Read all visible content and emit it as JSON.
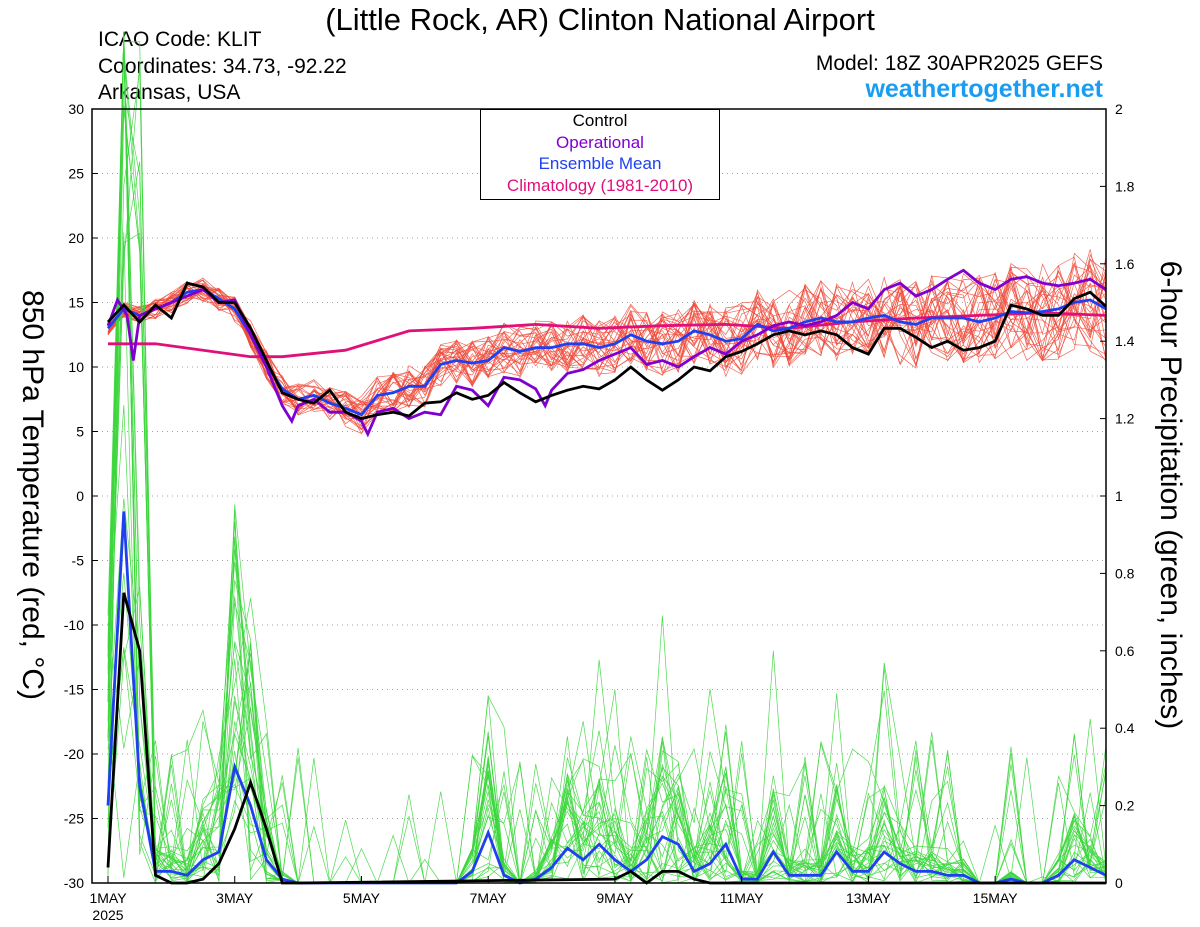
{
  "header": {
    "title": "(Little Rock, AR) Clinton National Airport",
    "icao": "ICAO Code: KLIT",
    "coords": "Coordinates: 34.73, -92.22",
    "region": "Arkansas, USA",
    "model": "Model: 18Z 30APR2025 GEFS",
    "brand": "weathertogether.net",
    "brand_color": "#1a9cf0"
  },
  "chart_data": {
    "type": "line",
    "ylabel_left": "850 hPa Temperature (red, °C)",
    "ylabel_right": "6-hour Precipitation (green, inches)",
    "ylim_left": [
      -30,
      30
    ],
    "ylim_right": [
      0,
      2
    ],
    "yticks_left": [
      "30",
      "25",
      "20",
      "15",
      "10",
      "5",
      "0",
      "-5",
      "-10",
      "-15",
      "-20",
      "-25",
      "-30"
    ],
    "yticks_right": [
      "2",
      "1.8",
      "1.6",
      "1.4",
      "1.2",
      "1",
      "0.8",
      "0.6",
      "0.4",
      "0.2",
      "0"
    ],
    "x_unit": "days since 1MAY 2025 00Z",
    "xlim": [
      0,
      15.75
    ],
    "xticks": [
      {
        "x": 0,
        "label": "1MAY"
      },
      {
        "x": 2,
        "label": "3MAY"
      },
      {
        "x": 4,
        "label": "5MAY"
      },
      {
        "x": 6,
        "label": "7MAY"
      },
      {
        "x": 8,
        "label": "9MAY"
      },
      {
        "x": 10,
        "label": "11MAY"
      },
      {
        "x": 12,
        "label": "13MAY"
      },
      {
        "x": 14,
        "label": "15MAY"
      }
    ],
    "x_year": "2025",
    "grid": "horizontal dotted",
    "legend_position": "top-center",
    "legend": [
      {
        "label": "Control",
        "color": "#000000"
      },
      {
        "label": "Operational",
        "color": "#8000d0"
      },
      {
        "label": "Ensemble Mean",
        "color": "#2040f0"
      },
      {
        "label": "Climatology (1981-2010)",
        "color": "#e0107a"
      }
    ],
    "colors": {
      "members_temp": "#f04a3a",
      "members_precip": "#3cd63c",
      "control": "#000000",
      "operational": "#8000d0",
      "mean": "#2040f0",
      "climatology": "#e0107a"
    },
    "temperature": {
      "control": [
        [
          0,
          13.5
        ],
        [
          0.25,
          14.8
        ],
        [
          0.5,
          13.5
        ],
        [
          0.75,
          14.8
        ],
        [
          1,
          13.8
        ],
        [
          1.25,
          16.5
        ],
        [
          1.5,
          16.2
        ],
        [
          1.75,
          15.0
        ],
        [
          2,
          15.0
        ],
        [
          2.25,
          13.0
        ],
        [
          2.5,
          10.5
        ],
        [
          2.75,
          8.0
        ],
        [
          3,
          7.5
        ],
        [
          3.25,
          7.2
        ],
        [
          3.5,
          8.2
        ],
        [
          3.75,
          6.5
        ],
        [
          4,
          6.0
        ],
        [
          4.25,
          6.3
        ],
        [
          4.5,
          6.5
        ],
        [
          4.75,
          6.2
        ],
        [
          5,
          7.2
        ],
        [
          5.25,
          7.3
        ],
        [
          5.5,
          8.0
        ],
        [
          5.75,
          7.5
        ],
        [
          6,
          7.8
        ],
        [
          6.25,
          8.8
        ],
        [
          6.5,
          8.0
        ],
        [
          6.75,
          7.3
        ],
        [
          7,
          7.8
        ],
        [
          7.25,
          8.2
        ],
        [
          7.5,
          8.5
        ],
        [
          7.75,
          8.3
        ],
        [
          8,
          9.0
        ],
        [
          8.25,
          10.0
        ],
        [
          8.5,
          9.0
        ],
        [
          8.75,
          8.2
        ],
        [
          9,
          9.0
        ],
        [
          9.25,
          10.0
        ],
        [
          9.5,
          9.7
        ],
        [
          9.75,
          10.8
        ],
        [
          10,
          11.2
        ],
        [
          10.25,
          11.8
        ],
        [
          10.5,
          12.5
        ],
        [
          10.75,
          12.8
        ],
        [
          11,
          12.5
        ],
        [
          11.25,
          12.8
        ],
        [
          11.5,
          12.5
        ],
        [
          11.75,
          11.5
        ],
        [
          12,
          11.0
        ],
        [
          12.25,
          13.0
        ],
        [
          12.5,
          13.0
        ],
        [
          12.75,
          12.3
        ],
        [
          13,
          11.5
        ],
        [
          13.25,
          12.0
        ],
        [
          13.5,
          11.3
        ],
        [
          13.75,
          11.5
        ],
        [
          14,
          12.0
        ],
        [
          14.25,
          14.8
        ],
        [
          14.5,
          14.5
        ],
        [
          14.75,
          14.0
        ],
        [
          15,
          14.0
        ],
        [
          15.25,
          15.3
        ],
        [
          15.5,
          15.8
        ],
        [
          15.75,
          14.7
        ]
      ],
      "operational": [
        [
          0,
          13.2
        ],
        [
          0.15,
          15.2
        ],
        [
          0.3,
          14.0
        ],
        [
          0.4,
          10.5
        ],
        [
          0.5,
          14.0
        ],
        [
          0.75,
          14.5
        ],
        [
          1,
          15.0
        ],
        [
          1.25,
          15.5
        ],
        [
          1.5,
          16.0
        ],
        [
          1.75,
          15.0
        ],
        [
          2,
          15.2
        ],
        [
          2.25,
          12.5
        ],
        [
          2.5,
          10.0
        ],
        [
          2.75,
          7.0
        ],
        [
          2.9,
          5.8
        ],
        [
          3,
          7.0
        ],
        [
          3.25,
          7.5
        ],
        [
          3.5,
          6.5
        ],
        [
          3.75,
          6.5
        ],
        [
          4,
          5.8
        ],
        [
          4.1,
          4.8
        ],
        [
          4.25,
          6.5
        ],
        [
          4.5,
          6.8
        ],
        [
          4.75,
          6.0
        ],
        [
          5,
          6.5
        ],
        [
          5.25,
          6.3
        ],
        [
          5.5,
          8.5
        ],
        [
          5.75,
          8.2
        ],
        [
          6,
          7.0
        ],
        [
          6.25,
          9.2
        ],
        [
          6.5,
          9.0
        ],
        [
          6.75,
          8.3
        ],
        [
          6.9,
          7.0
        ],
        [
          7,
          8.2
        ],
        [
          7.25,
          9.5
        ],
        [
          7.5,
          9.8
        ],
        [
          7.75,
          10.5
        ],
        [
          8,
          11.0
        ],
        [
          8.25,
          11.5
        ],
        [
          8.5,
          10.2
        ],
        [
          8.75,
          10.5
        ],
        [
          9,
          10.0
        ],
        [
          9.25,
          10.8
        ],
        [
          9.5,
          11.5
        ],
        [
          9.75,
          11.0
        ],
        [
          10,
          12.0
        ],
        [
          10.25,
          12.5
        ],
        [
          10.5,
          13.2
        ],
        [
          10.75,
          13.5
        ],
        [
          11,
          13.2
        ],
        [
          11.25,
          13.5
        ],
        [
          11.5,
          14.0
        ],
        [
          11.75,
          15.0
        ],
        [
          12,
          14.5
        ],
        [
          12.25,
          16.0
        ],
        [
          12.5,
          16.5
        ],
        [
          12.75,
          15.5
        ],
        [
          13,
          16.0
        ],
        [
          13.25,
          16.8
        ],
        [
          13.5,
          17.5
        ],
        [
          13.75,
          16.5
        ],
        [
          14,
          16.0
        ],
        [
          14.25,
          16.8
        ],
        [
          14.5,
          17.0
        ],
        [
          14.75,
          16.5
        ],
        [
          15,
          16.3
        ],
        [
          15.25,
          16.5
        ],
        [
          15.5,
          16.8
        ],
        [
          15.75,
          16.0
        ]
      ],
      "mean": [
        [
          0,
          13.0
        ],
        [
          0.25,
          14.5
        ],
        [
          0.5,
          14.0
        ],
        [
          0.75,
          14.5
        ],
        [
          1,
          15.0
        ],
        [
          1.25,
          15.8
        ],
        [
          1.5,
          16.0
        ],
        [
          1.75,
          15.3
        ],
        [
          2,
          14.5
        ],
        [
          2.25,
          12.5
        ],
        [
          2.5,
          10.2
        ],
        [
          2.75,
          8.3
        ],
        [
          3,
          7.5
        ],
        [
          3.25,
          7.8
        ],
        [
          3.5,
          7.2
        ],
        [
          3.75,
          6.8
        ],
        [
          4,
          6.3
        ],
        [
          4.25,
          7.8
        ],
        [
          4.5,
          8.0
        ],
        [
          4.75,
          8.5
        ],
        [
          5,
          8.5
        ],
        [
          5.25,
          10.2
        ],
        [
          5.5,
          10.5
        ],
        [
          5.75,
          10.3
        ],
        [
          6,
          10.5
        ],
        [
          6.25,
          11.5
        ],
        [
          6.5,
          11.2
        ],
        [
          6.75,
          11.5
        ],
        [
          7,
          11.5
        ],
        [
          7.25,
          11.8
        ],
        [
          7.5,
          11.8
        ],
        [
          7.75,
          11.5
        ],
        [
          8,
          11.8
        ],
        [
          8.25,
          12.5
        ],
        [
          8.5,
          12.0
        ],
        [
          8.75,
          11.8
        ],
        [
          9,
          12.0
        ],
        [
          9.25,
          12.8
        ],
        [
          9.5,
          12.5
        ],
        [
          9.75,
          12.0
        ],
        [
          10,
          12.2
        ],
        [
          10.25,
          13.3
        ],
        [
          10.5,
          12.8
        ],
        [
          10.75,
          13.0
        ],
        [
          11,
          13.5
        ],
        [
          11.25,
          13.8
        ],
        [
          11.5,
          13.5
        ],
        [
          11.75,
          13.5
        ],
        [
          12,
          13.8
        ],
        [
          12.25,
          14.0
        ],
        [
          12.5,
          13.5
        ],
        [
          12.75,
          13.3
        ],
        [
          13,
          13.8
        ],
        [
          13.25,
          13.8
        ],
        [
          13.5,
          13.8
        ],
        [
          13.75,
          13.5
        ],
        [
          14,
          13.8
        ],
        [
          14.25,
          14.3
        ],
        [
          14.5,
          14.2
        ],
        [
          14.75,
          14.3
        ],
        [
          15,
          14.5
        ],
        [
          15.25,
          15.0
        ],
        [
          15.5,
          15.2
        ],
        [
          15.75,
          14.5
        ]
      ],
      "climatology": [
        [
          0,
          11.8
        ],
        [
          0.75,
          11.8
        ],
        [
          1.5,
          11.3
        ],
        [
          2.25,
          10.8
        ],
        [
          2.75,
          10.8
        ],
        [
          3.75,
          11.3
        ],
        [
          4.75,
          12.8
        ],
        [
          5.75,
          13.0
        ],
        [
          6.75,
          13.3
        ],
        [
          7.75,
          13.0
        ],
        [
          8.75,
          13.2
        ],
        [
          9.75,
          13.3
        ],
        [
          10.75,
          13.0
        ],
        [
          11.75,
          13.5
        ],
        [
          12.75,
          13.8
        ],
        [
          13.75,
          14.0
        ],
        [
          14.75,
          14.2
        ],
        [
          15.75,
          14.0
        ]
      ]
    },
    "precipitation": {
      "control": [
        [
          0,
          0.04
        ],
        [
          0.25,
          0.75
        ],
        [
          0.5,
          0.6
        ],
        [
          0.75,
          0.02
        ],
        [
          1,
          0.0
        ],
        [
          1.25,
          0.0
        ],
        [
          1.5,
          0.01
        ],
        [
          1.75,
          0.05
        ],
        [
          2,
          0.14
        ],
        [
          2.25,
          0.26
        ],
        [
          2.5,
          0.14
        ],
        [
          2.75,
          0.0
        ],
        [
          3,
          0.0
        ],
        [
          8,
          0.01
        ],
        [
          8.25,
          0.03
        ],
        [
          8.5,
          0.0
        ],
        [
          8.75,
          0.03
        ],
        [
          9,
          0.03
        ],
        [
          9.25,
          0.01
        ],
        [
          9.5,
          0.0
        ],
        [
          15.75,
          0.0
        ]
      ],
      "mean": [
        [
          0,
          0.2
        ],
        [
          0.25,
          0.96
        ],
        [
          0.5,
          0.25
        ],
        [
          0.75,
          0.03
        ],
        [
          1,
          0.03
        ],
        [
          1.25,
          0.02
        ],
        [
          1.5,
          0.06
        ],
        [
          1.75,
          0.08
        ],
        [
          2,
          0.3
        ],
        [
          2.25,
          0.2
        ],
        [
          2.5,
          0.06
        ],
        [
          2.75,
          0.01
        ],
        [
          3,
          0.0
        ],
        [
          5.5,
          0.0
        ],
        [
          5.75,
          0.03
        ],
        [
          6,
          0.13
        ],
        [
          6.25,
          0.02
        ],
        [
          6.5,
          0.0
        ],
        [
          6.75,
          0.01
        ],
        [
          7,
          0.04
        ],
        [
          7.25,
          0.09
        ],
        [
          7.5,
          0.06
        ],
        [
          7.75,
          0.1
        ],
        [
          8,
          0.06
        ],
        [
          8.25,
          0.03
        ],
        [
          8.5,
          0.06
        ],
        [
          8.75,
          0.12
        ],
        [
          9,
          0.1
        ],
        [
          9.25,
          0.03
        ],
        [
          9.5,
          0.05
        ],
        [
          9.75,
          0.1
        ],
        [
          10,
          0.01
        ],
        [
          10.25,
          0.01
        ],
        [
          10.5,
          0.08
        ],
        [
          10.75,
          0.02
        ],
        [
          11,
          0.02
        ],
        [
          11.25,
          0.02
        ],
        [
          11.5,
          0.08
        ],
        [
          11.75,
          0.03
        ],
        [
          12,
          0.03
        ],
        [
          12.25,
          0.08
        ],
        [
          12.5,
          0.05
        ],
        [
          12.75,
          0.03
        ],
        [
          13,
          0.03
        ],
        [
          13.25,
          0.02
        ],
        [
          13.5,
          0.02
        ],
        [
          13.75,
          0.0
        ],
        [
          14,
          0.0
        ],
        [
          14.25,
          0.01
        ],
        [
          14.5,
          0.0
        ],
        [
          14.75,
          0.0
        ],
        [
          15,
          0.02
        ],
        [
          15.25,
          0.06
        ],
        [
          15.5,
          0.04
        ],
        [
          15.75,
          0.02
        ]
      ]
    }
  }
}
